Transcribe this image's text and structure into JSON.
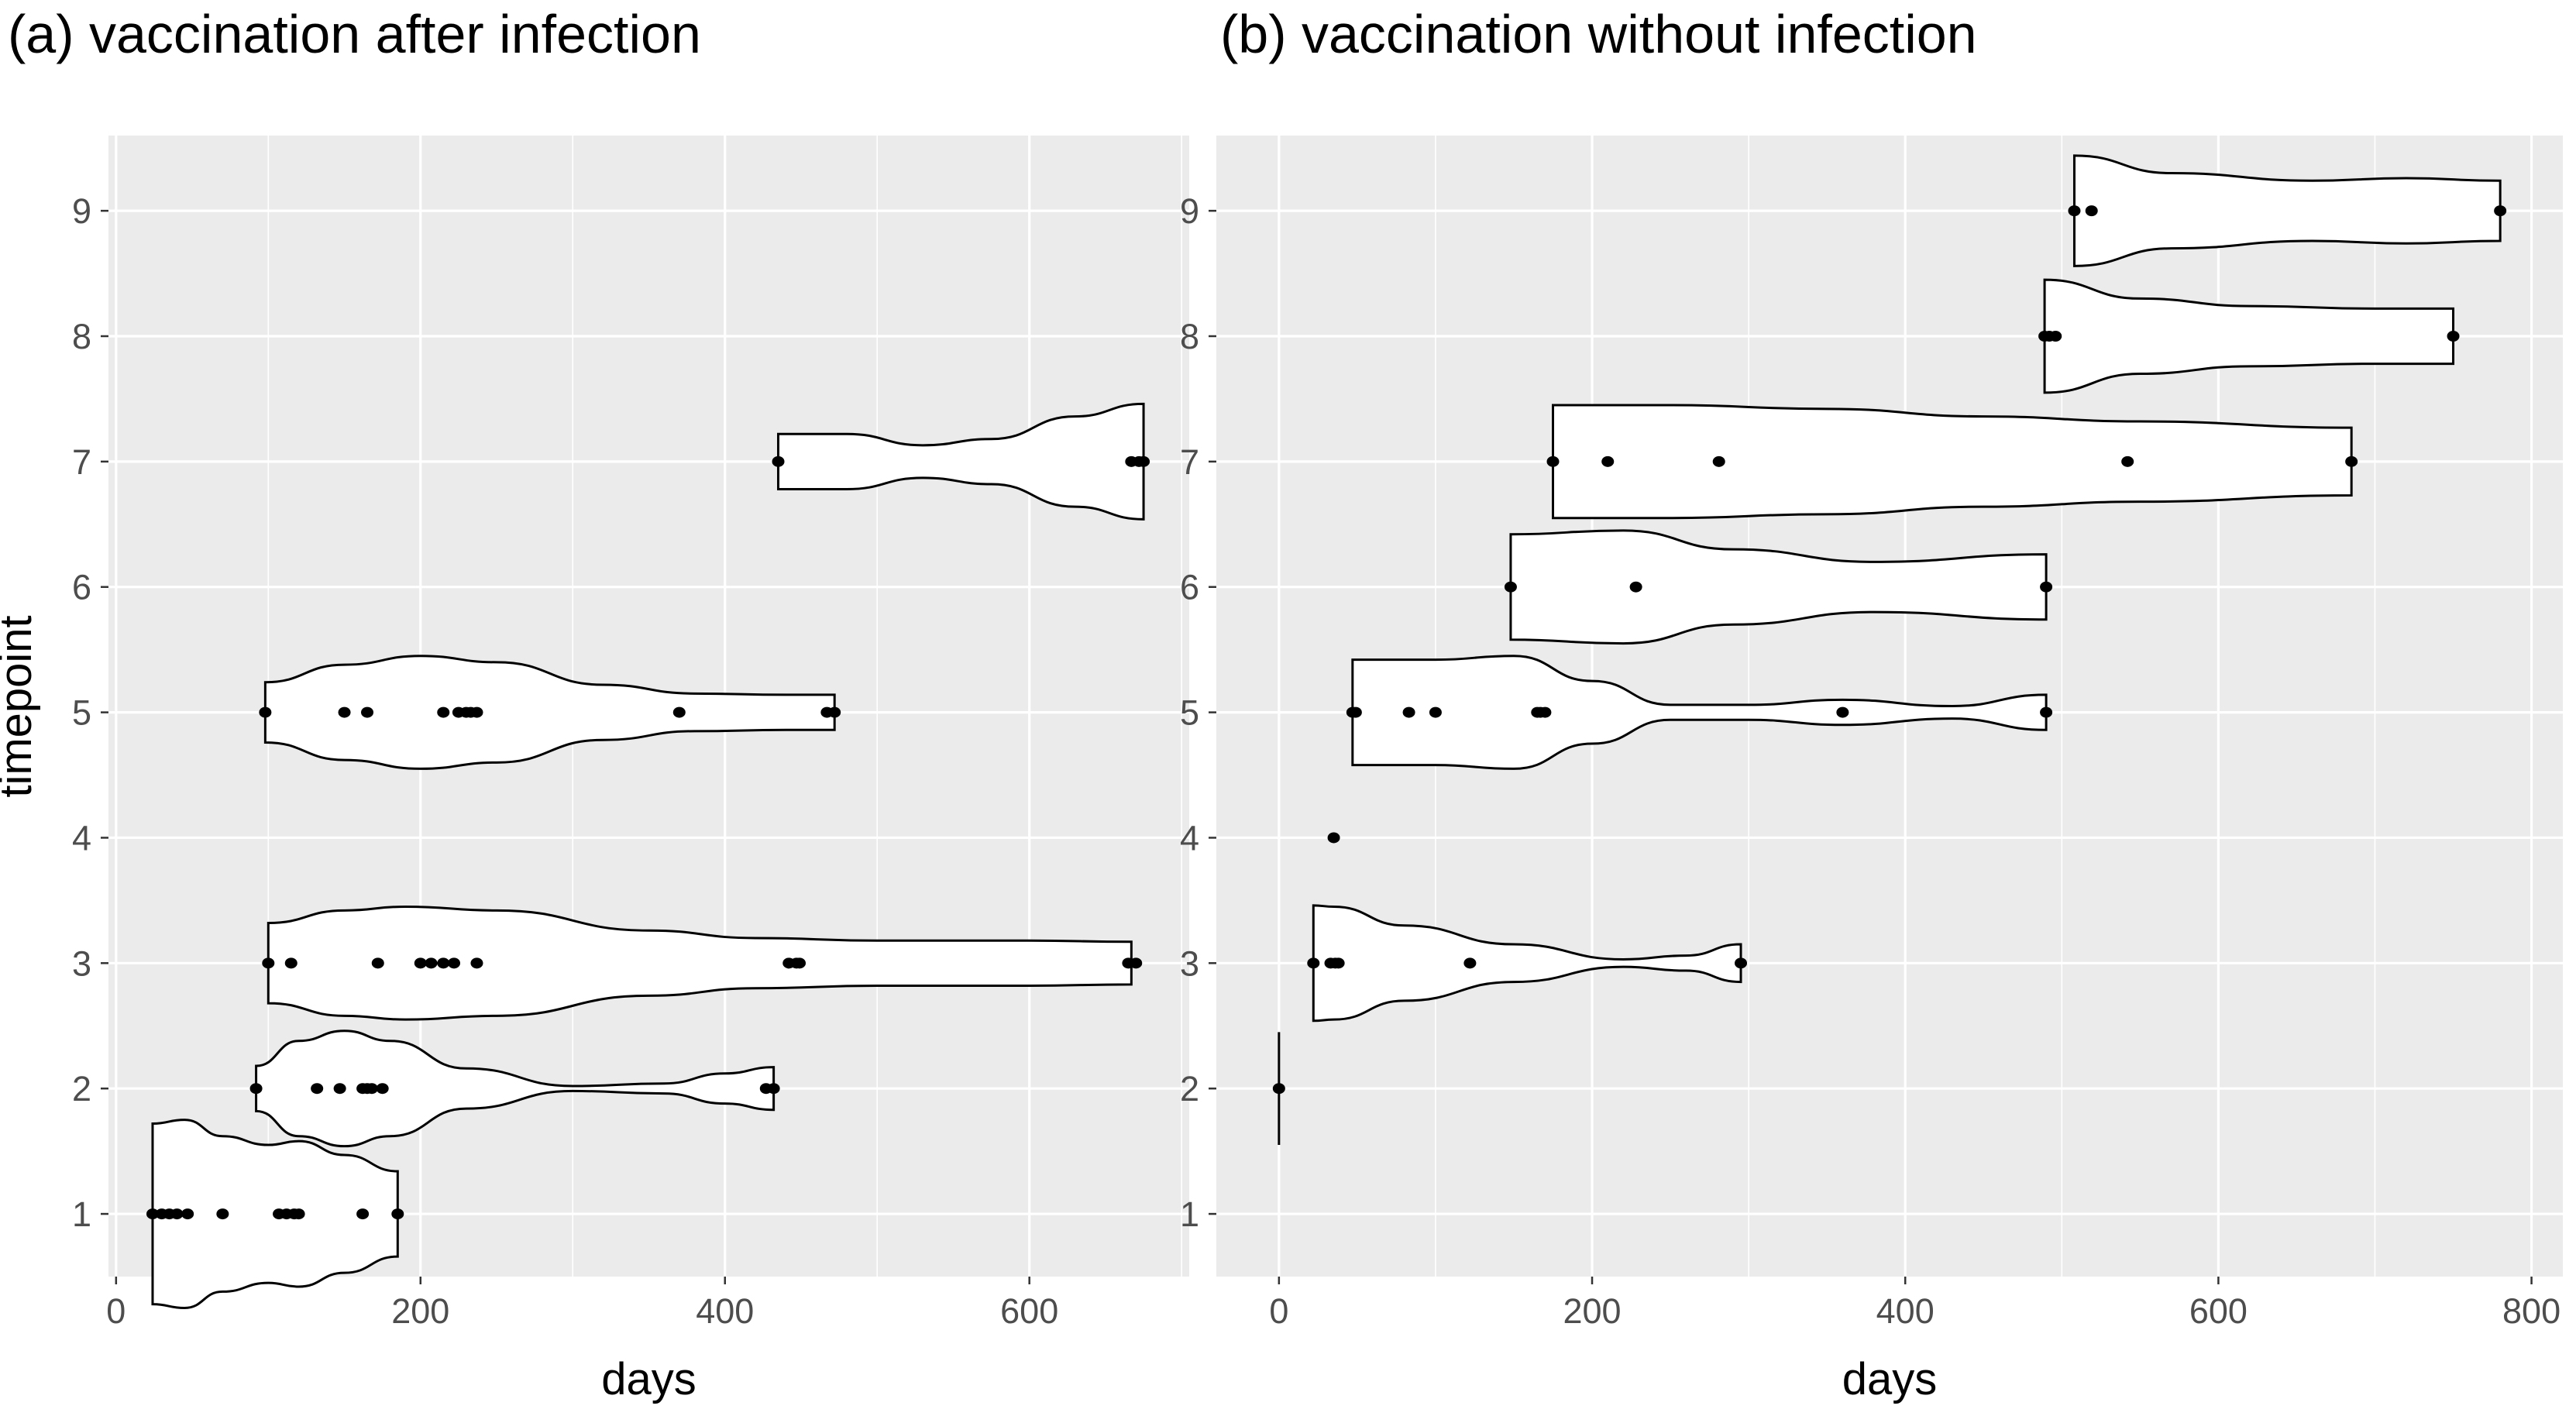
{
  "chart_data": [
    {
      "type": "violin",
      "title": "(a) vaccination after infection",
      "xlabel": "days",
      "ylabel": "timepoint",
      "xlim": [
        -5,
        705
      ],
      "ylim": [
        0.5,
        9.6
      ],
      "xticks": [
        0,
        200,
        400,
        600
      ],
      "xtick_labels": [
        "0",
        "200",
        "400",
        "600"
      ],
      "yticks": [
        1,
        2,
        3,
        4,
        5,
        6,
        7,
        8,
        9
      ],
      "ytick_labels": [
        "1",
        "2",
        "3",
        "4",
        "5",
        "6",
        "7",
        "8",
        "9"
      ],
      "grid": true,
      "groups": [
        {
          "timepoint": 1,
          "points": [
            24,
            30,
            35,
            40,
            47,
            70,
            107,
            112,
            117,
            120,
            162,
            185
          ],
          "violin": [
            [
              24,
              0.72
            ],
            [
              45,
              0.75
            ],
            [
              70,
              0.62
            ],
            [
              100,
              0.55
            ],
            [
              120,
              0.58
            ],
            [
              150,
              0.47
            ],
            [
              185,
              0.34
            ]
          ]
        },
        {
          "timepoint": 2,
          "points": [
            92,
            132,
            147,
            162,
            165,
            168,
            175,
            427,
            432
          ],
          "violin": [
            [
              92,
              0.18
            ],
            [
              120,
              0.38
            ],
            [
              150,
              0.46
            ],
            [
              180,
              0.38
            ],
            [
              230,
              0.16
            ],
            [
              300,
              0.02
            ],
            [
              360,
              0.04
            ],
            [
              400,
              0.12
            ],
            [
              432,
              0.17
            ]
          ]
        },
        {
          "timepoint": 3,
          "points": [
            100,
            115,
            172,
            200,
            207,
            215,
            222,
            237,
            442,
            447,
            449,
            665,
            670
          ],
          "violin": [
            [
              100,
              0.32
            ],
            [
              150,
              0.42
            ],
            [
              190,
              0.45
            ],
            [
              250,
              0.42
            ],
            [
              350,
              0.26
            ],
            [
              420,
              0.2
            ],
            [
              500,
              0.18
            ],
            [
              600,
              0.18
            ],
            [
              667,
              0.17
            ]
          ]
        },
        {
          "timepoint": 5,
          "points": [
            98,
            150,
            165,
            215,
            225,
            230,
            233,
            237,
            370,
            467,
            472
          ],
          "violin": [
            [
              98,
              0.24
            ],
            [
              150,
              0.38
            ],
            [
              200,
              0.45
            ],
            [
              250,
              0.4
            ],
            [
              320,
              0.22
            ],
            [
              380,
              0.15
            ],
            [
              440,
              0.14
            ],
            [
              472,
              0.14
            ]
          ]
        },
        {
          "timepoint": 7,
          "points": [
            435,
            667,
            672,
            675
          ],
          "violin": [
            [
              435,
              0.22
            ],
            [
              480,
              0.22
            ],
            [
              530,
              0.13
            ],
            [
              575,
              0.18
            ],
            [
              630,
              0.36
            ],
            [
              675,
              0.46
            ]
          ]
        }
      ]
    },
    {
      "type": "violin",
      "title": "(b) vaccination without infection",
      "xlabel": "days",
      "ylabel": "",
      "xlim": [
        -40,
        820
      ],
      "ylim": [
        0.5,
        9.6
      ],
      "xticks": [
        0,
        200,
        400,
        600,
        800
      ],
      "xtick_labels": [
        "0",
        "200",
        "400",
        "600",
        "800"
      ],
      "yticks": [
        1,
        2,
        3,
        4,
        5,
        6,
        7,
        8,
        9
      ],
      "ytick_labels": [
        "1",
        "2",
        "3",
        "4",
        "5",
        "6",
        "7",
        "8",
        "9"
      ],
      "grid": true,
      "groups": [
        {
          "timepoint": 2,
          "points": [
            0
          ],
          "violin": [
            [
              0,
              0.45
            ]
          ]
        },
        {
          "timepoint": 3,
          "points": [
            22,
            33,
            36,
            38,
            122,
            295
          ],
          "violin": [
            [
              22,
              0.46
            ],
            [
              35,
              0.45
            ],
            [
              80,
              0.3
            ],
            [
              150,
              0.15
            ],
            [
              220,
              0.03
            ],
            [
              260,
              0.06
            ],
            [
              295,
              0.15
            ]
          ]
        },
        {
          "timepoint": 4,
          "points": [
            35
          ],
          "violin": []
        },
        {
          "timepoint": 5,
          "points": [
            47,
            49,
            83,
            100,
            165,
            167,
            170,
            360,
            490
          ],
          "violin": [
            [
              47,
              0.42
            ],
            [
              100,
              0.42
            ],
            [
              150,
              0.45
            ],
            [
              200,
              0.25
            ],
            [
              250,
              0.06
            ],
            [
              300,
              0.06
            ],
            [
              360,
              0.1
            ],
            [
              430,
              0.05
            ],
            [
              490,
              0.14
            ]
          ]
        },
        {
          "timepoint": 6,
          "points": [
            148,
            228,
            490
          ],
          "violin": [
            [
              148,
              0.42
            ],
            [
              220,
              0.45
            ],
            [
              290,
              0.3
            ],
            [
              380,
              0.2
            ],
            [
              490,
              0.26
            ]
          ]
        },
        {
          "timepoint": 7,
          "points": [
            175,
            210,
            281,
            542,
            685
          ],
          "violin": [
            [
              175,
              0.45
            ],
            [
              250,
              0.45
            ],
            [
              350,
              0.42
            ],
            [
              450,
              0.36
            ],
            [
              550,
              0.32
            ],
            [
              685,
              0.27
            ]
          ]
        },
        {
          "timepoint": 8,
          "points": [
            489,
            492,
            496,
            750
          ],
          "violin": [
            [
              489,
              0.45
            ],
            [
              550,
              0.3
            ],
            [
              620,
              0.24
            ],
            [
              700,
              0.22
            ],
            [
              750,
              0.22
            ]
          ]
        },
        {
          "timepoint": 9,
          "points": [
            508,
            519,
            780
          ],
          "violin": [
            [
              508,
              0.44
            ],
            [
              570,
              0.3
            ],
            [
              660,
              0.24
            ],
            [
              720,
              0.26
            ],
            [
              780,
              0.24
            ]
          ]
        }
      ]
    }
  ]
}
